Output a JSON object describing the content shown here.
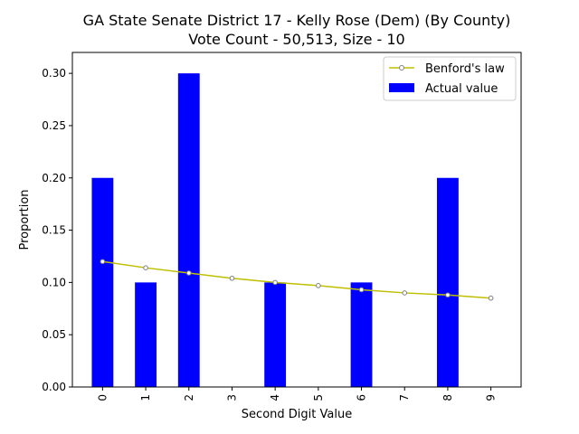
{
  "chart_data": {
    "type": "bar",
    "title": [
      "GA State Senate District 17 - Kelly Rose (Dem) (By County)",
      "Vote Count - 50,513, Size - 10"
    ],
    "xlabel": "Second Digit Value",
    "ylabel": "Proportion",
    "categories": [
      "0",
      "1",
      "2",
      "3",
      "4",
      "5",
      "6",
      "7",
      "8",
      "9"
    ],
    "ylim": [
      0,
      0.32
    ],
    "yticks": [
      "0.00",
      "0.05",
      "0.10",
      "0.15",
      "0.20",
      "0.25",
      "0.30"
    ],
    "grid": false,
    "legend_position": "top-right",
    "series": [
      {
        "name": "Actual value",
        "kind": "bar",
        "color": "#0000ff",
        "values": [
          0.2,
          0.1,
          0.3,
          0.0,
          0.1,
          0.0,
          0.1,
          0.0,
          0.2,
          0.0
        ]
      },
      {
        "name": "Benford's law",
        "kind": "line",
        "color": "#bfbf00",
        "marker_color": "#808080",
        "values": [
          0.12,
          0.114,
          0.109,
          0.104,
          0.1,
          0.097,
          0.093,
          0.09,
          0.088,
          0.085
        ]
      }
    ]
  }
}
